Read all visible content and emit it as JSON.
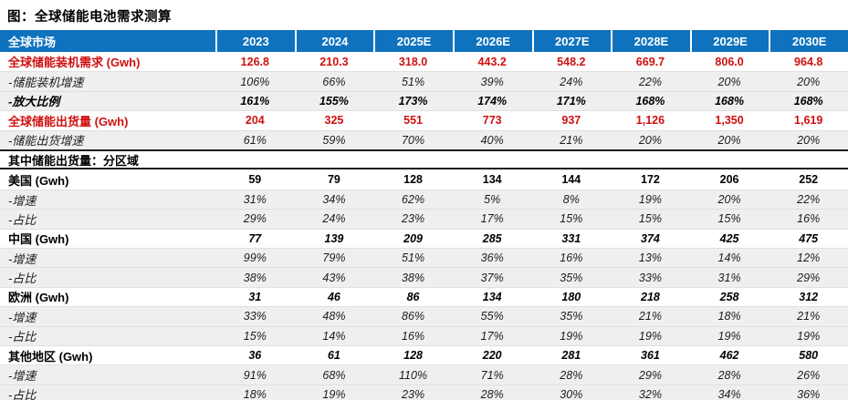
{
  "title": "图：全球储能电池需求测算",
  "colors": {
    "header_background": "#0E72BE",
    "header_text": "#FFFFFF",
    "accent_red": "#D01010",
    "stripe_gray": "#EFEFEF",
    "section_line": "#1F1F1F",
    "row_line": "#E0E0E0"
  },
  "chart_data": {
    "type": "table",
    "title": "图：全球储能电池需求测算",
    "corner_header": "全球市场",
    "columns": [
      "2023",
      "2024",
      "2025E",
      "2026E",
      "2027E",
      "2028E",
      "2029E",
      "2030E"
    ],
    "rows": [
      {
        "label": "全球储能装机需求 (Gwh)",
        "kind": "total",
        "values": [
          "126.8",
          "210.3",
          "318.0",
          "443.2",
          "548.2",
          "669.7",
          "806.0",
          "964.8"
        ]
      },
      {
        "label": "-储能装机增速",
        "kind": "sub",
        "values": [
          "106%",
          "66%",
          "51%",
          "39%",
          "24%",
          "22%",
          "20%",
          "20%"
        ]
      },
      {
        "label": "-放大比例",
        "kind": "sub-strong",
        "values": [
          "161%",
          "155%",
          "173%",
          "174%",
          "171%",
          "168%",
          "168%",
          "168%"
        ]
      },
      {
        "label": "全球储能出货量 (Gwh)",
        "kind": "total",
        "values": [
          "204",
          "325",
          "551",
          "773",
          "937",
          "1,126",
          "1,350",
          "1,619"
        ]
      },
      {
        "label": "-储能出货增速",
        "kind": "sub",
        "values": [
          "61%",
          "59%",
          "70%",
          "40%",
          "21%",
          "20%",
          "20%",
          "20%"
        ]
      },
      {
        "label": "其中储能出货量：分区域",
        "kind": "section",
        "values": []
      },
      {
        "label": "美国 (Gwh)",
        "kind": "region-upright",
        "values": [
          "59",
          "79",
          "128",
          "134",
          "144",
          "172",
          "206",
          "252"
        ]
      },
      {
        "label": "-增速",
        "kind": "sub",
        "values": [
          "31%",
          "34%",
          "62%",
          "5%",
          "8%",
          "19%",
          "20%",
          "22%"
        ]
      },
      {
        "label": "-占比",
        "kind": "sub",
        "values": [
          "29%",
          "24%",
          "23%",
          "17%",
          "15%",
          "15%",
          "15%",
          "16%"
        ]
      },
      {
        "label": "中国 (Gwh)",
        "kind": "region",
        "values": [
          "77",
          "139",
          "209",
          "285",
          "331",
          "374",
          "425",
          "475"
        ]
      },
      {
        "label": "-增速",
        "kind": "sub",
        "values": [
          "99%",
          "79%",
          "51%",
          "36%",
          "16%",
          "13%",
          "14%",
          "12%"
        ]
      },
      {
        "label": "-占比",
        "kind": "sub",
        "values": [
          "38%",
          "43%",
          "38%",
          "37%",
          "35%",
          "33%",
          "31%",
          "29%"
        ]
      },
      {
        "label": "欧洲 (Gwh)",
        "kind": "region",
        "values": [
          "31",
          "46",
          "86",
          "134",
          "180",
          "218",
          "258",
          "312"
        ]
      },
      {
        "label": "-增速",
        "kind": "sub",
        "values": [
          "33%",
          "48%",
          "86%",
          "55%",
          "35%",
          "21%",
          "18%",
          "21%"
        ]
      },
      {
        "label": "-占比",
        "kind": "sub",
        "values": [
          "15%",
          "14%",
          "16%",
          "17%",
          "19%",
          "19%",
          "19%",
          "19%"
        ]
      },
      {
        "label": "其他地区 (Gwh)",
        "kind": "region",
        "values": [
          "36",
          "61",
          "128",
          "220",
          "281",
          "361",
          "462",
          "580"
        ]
      },
      {
        "label": "-增速",
        "kind": "sub",
        "values": [
          "91%",
          "68%",
          "110%",
          "71%",
          "28%",
          "29%",
          "28%",
          "26%"
        ]
      },
      {
        "label": "-占比",
        "kind": "sub",
        "values": [
          "18%",
          "19%",
          "23%",
          "28%",
          "30%",
          "32%",
          "34%",
          "36%"
        ]
      }
    ]
  }
}
